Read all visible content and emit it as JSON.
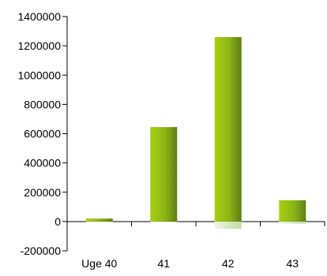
{
  "chart_data": {
    "type": "bar",
    "categories": [
      "Uge 40",
      "41",
      "42",
      "43"
    ],
    "values": [
      20000,
      645000,
      1260000,
      145000
    ],
    "negative_values": [
      -5000,
      -5000,
      -50000,
      -15000
    ],
    "title": "",
    "xlabel": "",
    "ylabel": "",
    "ylim": [
      -200000,
      1400000
    ],
    "yticks": [
      -200000,
      0,
      200000,
      400000,
      600000,
      800000,
      1000000,
      1200000,
      1400000
    ],
    "ytick_labels": [
      "-200000",
      "0",
      "200000",
      "400000",
      "600000",
      "800000",
      "1000000",
      "1200000",
      "1400000"
    ],
    "grid": false,
    "legend": "none",
    "colors": {
      "bar_light": "#a6cf12",
      "bar_mid": "#8cb516",
      "bar_dark": "#5d7f14",
      "negative_light": "#edf7e3",
      "negative_dark": "#c2dca8",
      "axis": "#000000"
    }
  }
}
